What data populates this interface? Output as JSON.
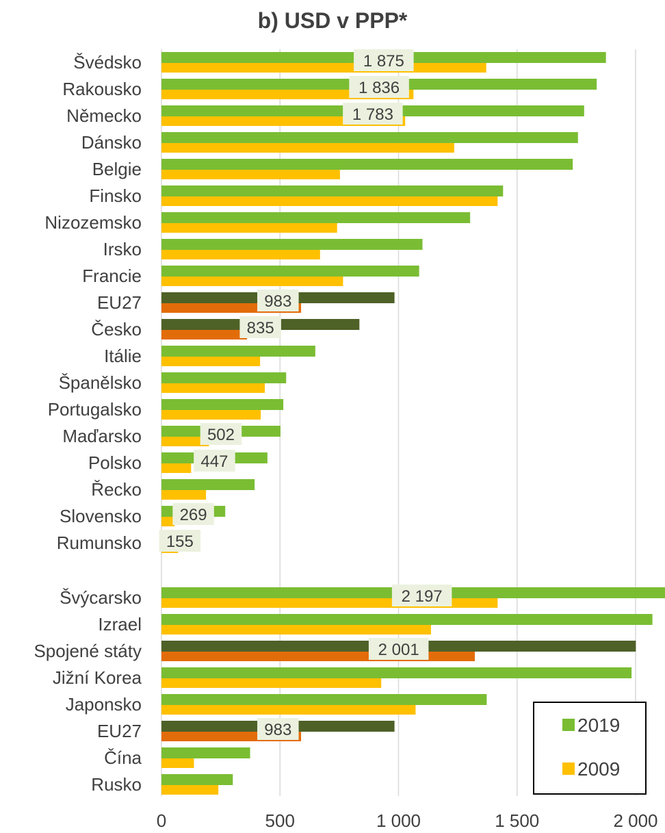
{
  "chart_data": {
    "type": "bar",
    "orientation": "horizontal",
    "title": "b) USD v PPP*",
    "xlim": [
      0,
      2100
    ],
    "x_ticks": [
      0,
      500,
      1000,
      1500,
      2000
    ],
    "x_tick_labels": [
      "0",
      "500",
      "1 000",
      "1 500",
      "2 000"
    ],
    "grid": true,
    "legend_position": "bottom-right",
    "series": [
      {
        "name": "2019",
        "color": "#7ABD33",
        "highlight_color": "#4E6127"
      },
      {
        "name": "2009",
        "color": "#FFC000",
        "highlight_color": "#E36C0A"
      }
    ],
    "groups": [
      {
        "categories": [
          {
            "label": "Švédsko",
            "v2019": 1875,
            "v2009": 1370,
            "data_label": "1 875",
            "highlight": false
          },
          {
            "label": "Rakousko",
            "v2019": 1836,
            "v2009": 1063,
            "data_label": "1 836",
            "highlight": false
          },
          {
            "label": "Německo",
            "v2019": 1783,
            "v2009": 1028,
            "data_label": "1 783",
            "highlight": false
          },
          {
            "label": "Dánsko",
            "v2019": 1757,
            "v2009": 1235,
            "data_label": null,
            "highlight": false
          },
          {
            "label": "Belgie",
            "v2019": 1735,
            "v2009": 753,
            "data_label": null,
            "highlight": false
          },
          {
            "label": "Finsko",
            "v2019": 1441,
            "v2009": 1418,
            "data_label": null,
            "highlight": false
          },
          {
            "label": "Nizozemsko",
            "v2019": 1302,
            "v2009": 741,
            "data_label": null,
            "highlight": false
          },
          {
            "label": "Irsko",
            "v2019": 1101,
            "v2009": 669,
            "data_label": null,
            "highlight": false
          },
          {
            "label": "Francie",
            "v2019": 1087,
            "v2009": 766,
            "data_label": null,
            "highlight": false
          },
          {
            "label": "EU27",
            "v2019": 983,
            "v2009": 589,
            "data_label": "983",
            "highlight": true
          },
          {
            "label": "Česko",
            "v2019": 835,
            "v2009": 361,
            "data_label": "835",
            "highlight": true
          },
          {
            "label": "Itálie",
            "v2019": 649,
            "v2009": 416,
            "data_label": null,
            "highlight": false
          },
          {
            "label": "Španělsko",
            "v2019": 526,
            "v2009": 436,
            "data_label": null,
            "highlight": false
          },
          {
            "label": "Portugalsko",
            "v2019": 514,
            "v2009": 419,
            "data_label": null,
            "highlight": false
          },
          {
            "label": "Maďarsko",
            "v2019": 502,
            "v2009": 200,
            "data_label": "502",
            "highlight": false
          },
          {
            "label": "Polsko",
            "v2019": 447,
            "v2009": 125,
            "data_label": "447",
            "highlight": false
          },
          {
            "label": "Řecko",
            "v2019": 393,
            "v2009": 188,
            "data_label": null,
            "highlight": false
          },
          {
            "label": "Slovensko",
            "v2019": 269,
            "v2009": 55,
            "data_label": "269",
            "highlight": false
          },
          {
            "label": "Rumunsko",
            "v2019": 155,
            "v2009": 70,
            "data_label": "155",
            "highlight": false
          }
        ]
      },
      {
        "categories": [
          {
            "label": "Švýcarsko",
            "v2019": 2197,
            "v2009": 1418,
            "data_label": "2 197",
            "highlight": false
          },
          {
            "label": "Izrael",
            "v2019": 2071,
            "v2009": 1137,
            "data_label": null,
            "highlight": false
          },
          {
            "label": "Spojené státy",
            "v2019": 2001,
            "v2009": 1322,
            "data_label": "2 001",
            "highlight": true
          },
          {
            "label": "Jižní Korea",
            "v2019": 1983,
            "v2009": 927,
            "data_label": null,
            "highlight": false
          },
          {
            "label": "Japonsko",
            "v2019": 1372,
            "v2009": 1072,
            "data_label": null,
            "highlight": false
          },
          {
            "label": "EU27",
            "v2019": 983,
            "v2009": 589,
            "data_label": "983",
            "highlight": true
          },
          {
            "label": "Čína",
            "v2019": 374,
            "v2009": 137,
            "data_label": null,
            "highlight": false
          },
          {
            "label": "Rusko",
            "v2019": 301,
            "v2009": 240,
            "data_label": null,
            "highlight": false
          }
        ]
      }
    ]
  }
}
